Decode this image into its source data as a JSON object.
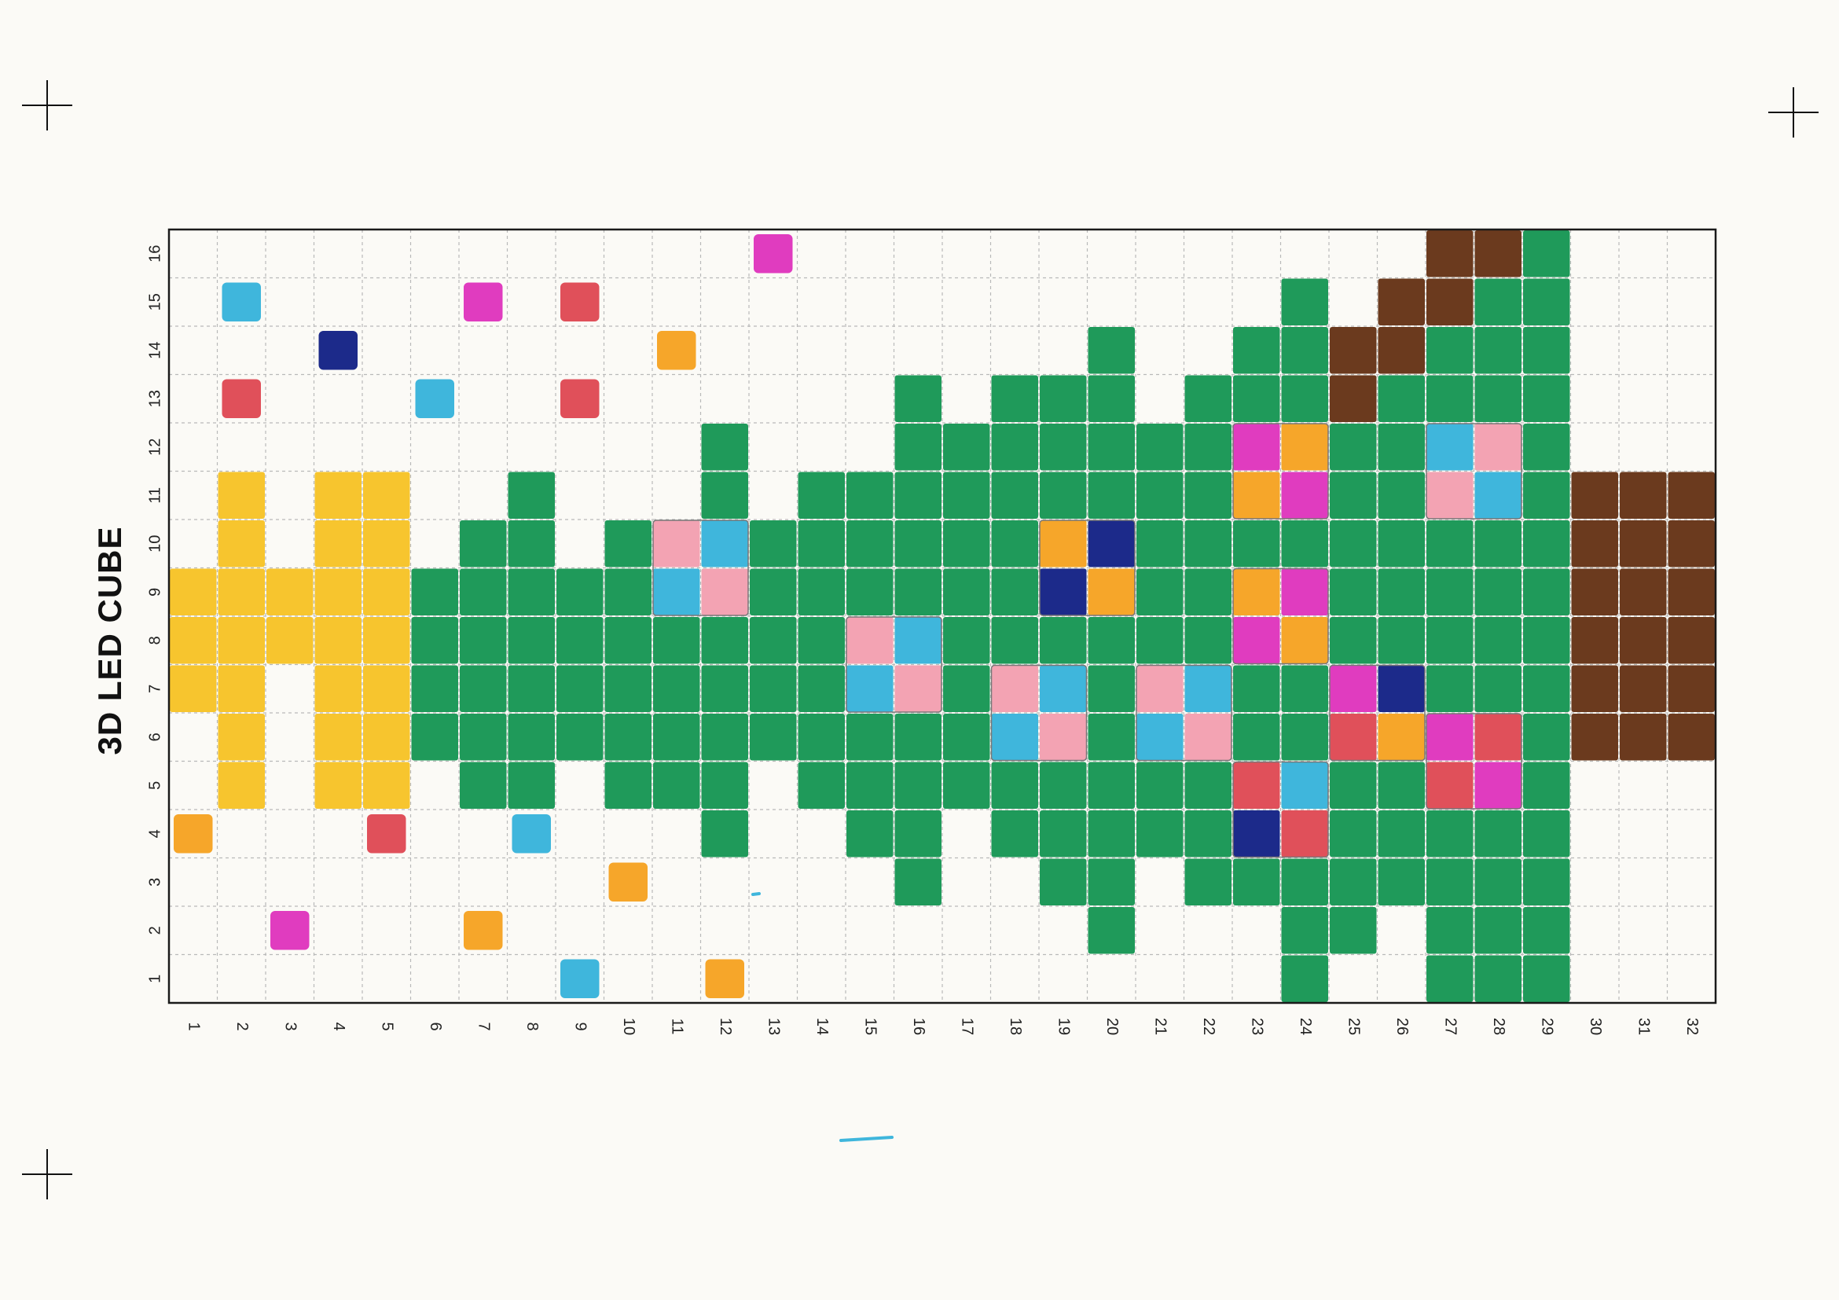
{
  "sheet": {
    "title": "3D LED CUBE",
    "columns": 32,
    "rows": 16,
    "column_labels": [
      "1",
      "2",
      "3",
      "4",
      "5",
      "6",
      "7",
      "8",
      "9",
      "10",
      "11",
      "12",
      "13",
      "14",
      "15",
      "16",
      "17",
      "18",
      "19",
      "20",
      "21",
      "22",
      "23",
      "24",
      "25",
      "26",
      "27",
      "28",
      "29",
      "30",
      "31",
      "32"
    ],
    "row_labels": [
      "16",
      "15",
      "14",
      "13",
      "12",
      "11",
      "10",
      "9",
      "8",
      "7",
      "6",
      "5",
      "4",
      "3",
      "2",
      "1"
    ]
  },
  "colors": {
    "paper": "#fbfaf6",
    "grid_line": "#b9b9b9",
    "frame": "#1a1a1a",
    "tree_green": "#1f9a5a",
    "trunk_brown": "#6b3a1e",
    "star_yellow": "#f7c52e",
    "magenta": "#e03cbf",
    "red": "#e0505a",
    "cyan": "#3fb6dc",
    "orange": "#f6a62a",
    "navy": "#1c2a8a",
    "pink": "#f3a3b3"
  },
  "drawing": {
    "tree": {
      "color": "tree_green",
      "first_column": 6,
      "last_column": 29
    },
    "trunk": {
      "color": "trunk_brown",
      "first_column": 30,
      "last_column": 32,
      "first_row": 6,
      "last_row": 11
    },
    "star": {
      "color": "star_yellow",
      "first_column": 1,
      "last_column": 5
    },
    "ornaments": [
      {
        "col": 11,
        "row": 10,
        "colors": [
          "pink",
          "cyan",
          "cyan",
          "pink"
        ]
      },
      {
        "col": 15,
        "row": 8,
        "colors": [
          "pink",
          "cyan",
          "cyan",
          "pink"
        ]
      },
      {
        "col": 18,
        "row": 7,
        "colors": [
          "pink",
          "cyan",
          "cyan",
          "pink"
        ]
      },
      {
        "col": 19,
        "row": 10,
        "colors": [
          "orange",
          "navy",
          "navy",
          "orange"
        ]
      },
      {
        "col": 21,
        "row": 7,
        "colors": [
          "pink",
          "cyan",
          "cyan",
          "pink"
        ]
      },
      {
        "col": 23,
        "row": 12,
        "colors": [
          "magenta",
          "orange",
          "orange",
          "magenta"
        ]
      },
      {
        "col": 23,
        "row": 9,
        "colors": [
          "orange",
          "magenta",
          "magenta",
          "orange"
        ]
      },
      {
        "col": 23,
        "row": 5,
        "colors": [
          "red",
          "cyan",
          "navy",
          "red"
        ]
      },
      {
        "col": 25,
        "row": 7,
        "colors": [
          "magenta",
          "navy",
          "red",
          "orange"
        ]
      },
      {
        "col": 27,
        "row": 12,
        "colors": [
          "cyan",
          "pink",
          "pink",
          "cyan"
        ]
      },
      {
        "col": 27,
        "row": 6,
        "colors": [
          "magenta",
          "red",
          "red",
          "magenta"
        ]
      }
    ],
    "scattered_lights": [
      {
        "col": 2,
        "row": 15,
        "color": "cyan"
      },
      {
        "col": 2,
        "row": 13,
        "color": "red"
      },
      {
        "col": 4,
        "row": 14,
        "color": "navy"
      },
      {
        "col": 6,
        "row": 13,
        "color": "cyan"
      },
      {
        "col": 7,
        "row": 15,
        "color": "magenta"
      },
      {
        "col": 9,
        "row": 15,
        "color": "red"
      },
      {
        "col": 9,
        "row": 13,
        "color": "red"
      },
      {
        "col": 11,
        "row": 14,
        "color": "orange"
      },
      {
        "col": 13,
        "row": 16,
        "color": "magenta"
      },
      {
        "col": 1,
        "row": 4,
        "color": "orange"
      },
      {
        "col": 5,
        "row": 4,
        "color": "red"
      },
      {
        "col": 8,
        "row": 4,
        "color": "cyan"
      },
      {
        "col": 10,
        "row": 3,
        "color": "orange"
      },
      {
        "col": 3,
        "row": 2,
        "color": "magenta"
      },
      {
        "col": 7,
        "row": 2,
        "color": "orange"
      },
      {
        "col": 9,
        "row": 1,
        "color": "cyan"
      },
      {
        "col": 12,
        "row": 1,
        "color": "orange"
      }
    ]
  }
}
